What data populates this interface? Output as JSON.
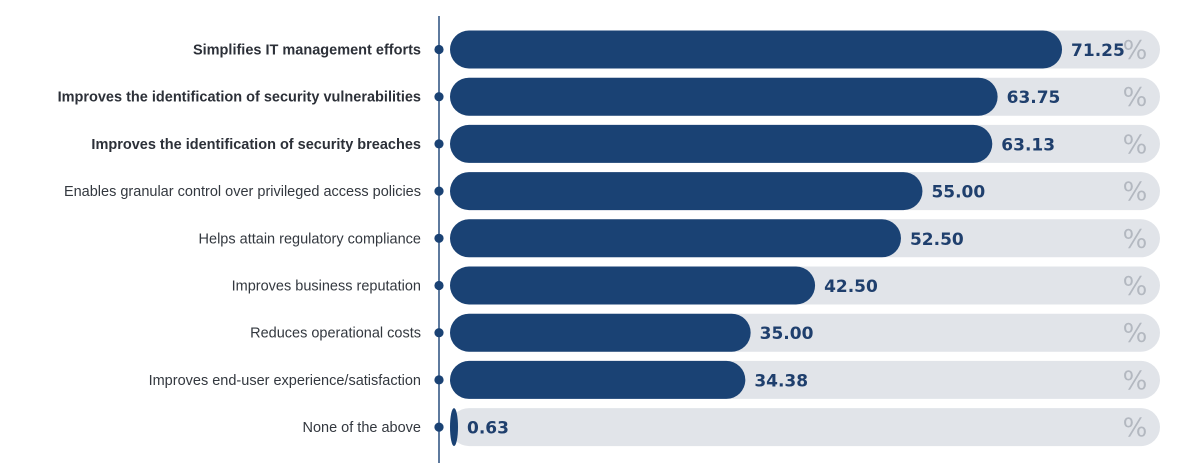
{
  "chart_data": {
    "type": "bar",
    "orientation": "horizontal",
    "categories": [
      "Simplifies IT management efforts",
      "Improves the identification of security vulnerabilities",
      "Improves the identification of security breaches",
      "Enables granular control over privileged access policies",
      "Helps attain regulatory compliance",
      "Improves business reputation",
      "Reduces operational costs",
      "Improves end-user experience/satisfaction",
      "None of the above"
    ],
    "values": [
      71.25,
      63.75,
      63.13,
      55.0,
      52.5,
      42.5,
      35.0,
      34.38,
      0.63
    ],
    "value_labels": [
      "71.25",
      "63.75",
      "63.13",
      "55.00",
      "52.50",
      "42.50",
      "35.00",
      "34.38",
      "0.63"
    ],
    "bold_categories": [
      true,
      true,
      true,
      false,
      false,
      false,
      false,
      false,
      false
    ],
    "unit_symbol": "%",
    "xlim": [
      0,
      100
    ],
    "grid": false,
    "colors": {
      "bar": "#1a4274",
      "track": "#e1e4e9",
      "axis": "#1a4274",
      "value_text": "#1f3f6d",
      "unit_text": "#b3b8c0"
    }
  }
}
